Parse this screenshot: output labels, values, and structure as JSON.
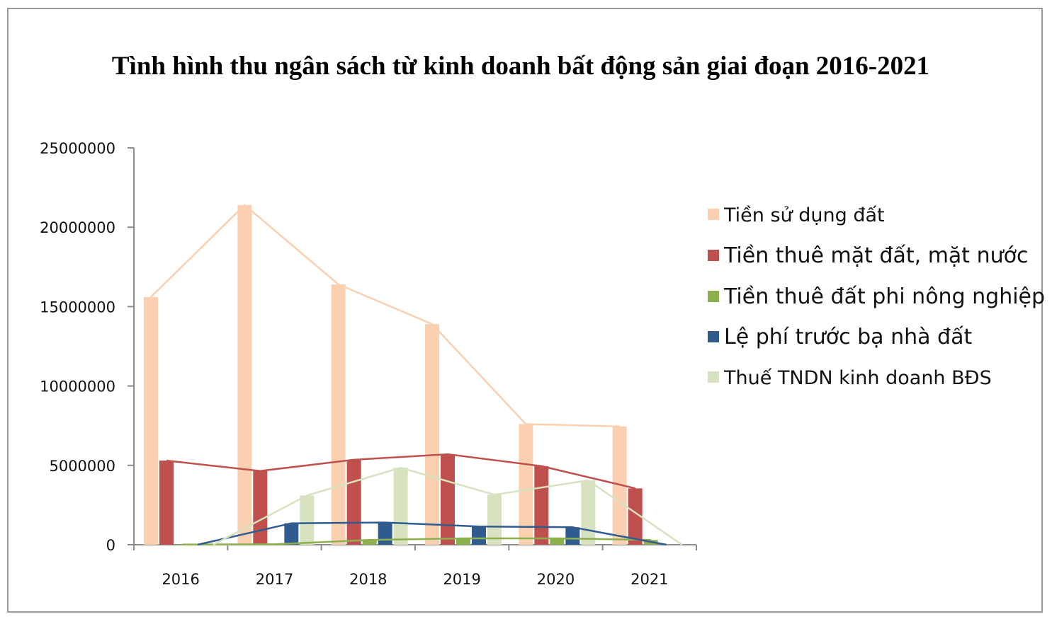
{
  "chart_data": {
    "type": "bar",
    "title": "Tình hình thu ngân sách từ kinh doanh bất động sản giai đoạn 2016-2021",
    "categories": [
      "2016",
      "2017",
      "2018",
      "2019",
      "2020",
      "2021"
    ],
    "ylim": [
      0,
      25000000
    ],
    "yticks": [
      "0",
      "5000000",
      "10000000",
      "15000000",
      "20000000",
      "25000000"
    ],
    "legend_position": "right",
    "grid": false,
    "series": [
      {
        "name": "Tiền sử dụng đất",
        "color": "#FAD0B0",
        "values": [
          15600000,
          21400000,
          16400000,
          13900000,
          7600000,
          7450000
        ]
      },
      {
        "name": "Tiền thuê mặt đất, mặt nước",
        "color": "#C0504D",
        "values": [
          5300000,
          4650000,
          5350000,
          5700000,
          4950000,
          3550000
        ]
      },
      {
        "name": "Tiền thuê đất phi nông nghiệp",
        "color": "#8DB04F",
        "values": [
          10000,
          30000,
          300000,
          400000,
          400000,
          300000
        ]
      },
      {
        "name": "Lệ phí trước bạ nhà đất",
        "color": "#2F5B8E",
        "values": [
          0,
          1350000,
          1400000,
          1150000,
          1100000,
          0
        ]
      },
      {
        "name": "Thuế TNDN kinh doanh BĐS",
        "color": "#D6E2C0",
        "values": [
          0,
          3100000,
          4850000,
          3150000,
          4050000,
          0
        ]
      }
    ]
  }
}
